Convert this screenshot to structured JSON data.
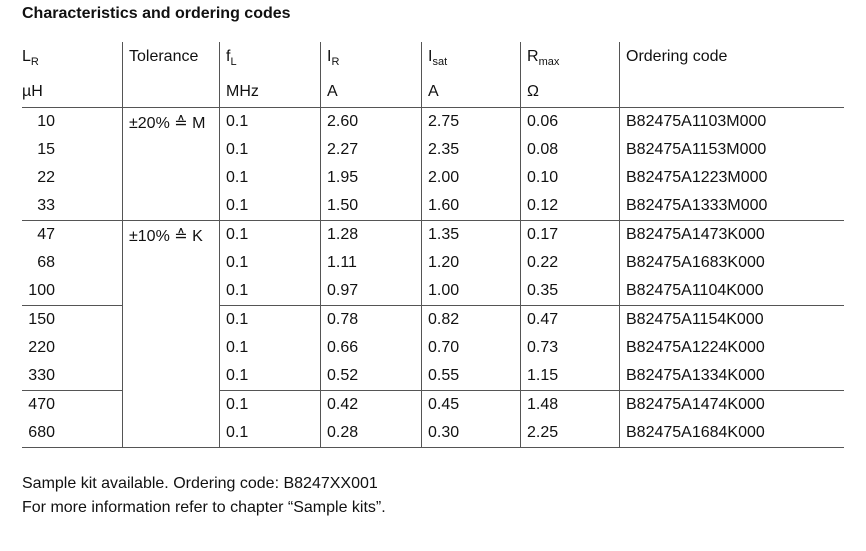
{
  "title": "Characteristics and ordering codes",
  "table": {
    "headers": [
      {
        "main": "L",
        "sub": "R",
        "unit": "µH"
      },
      {
        "main": "Tolerance"
      },
      {
        "main": "f",
        "sub": "L",
        "unit": "MHz"
      },
      {
        "main": "I",
        "sub": "R",
        "unit": "A"
      },
      {
        "main": "I",
        "sub": "sat",
        "unit": "A"
      },
      {
        "main": "R",
        "sub": "max",
        "unit": "Ω"
      },
      {
        "main": "Ordering code"
      }
    ],
    "tolerances": [
      "±20% ≙ M",
      "±10% ≙ K"
    ],
    "rows": [
      [
        "10",
        "0.1",
        "2.60",
        "2.75",
        "0.06",
        "B82475A1103M000"
      ],
      [
        "15",
        "0.1",
        "2.27",
        "2.35",
        "0.08",
        "B82475A1153M000"
      ],
      [
        "22",
        "0.1",
        "1.95",
        "2.00",
        "0.10",
        "B82475A1223M000"
      ],
      [
        "33",
        "0.1",
        "1.50",
        "1.60",
        "0.12",
        "B82475A1333M000"
      ],
      [
        "47",
        "0.1",
        "1.28",
        "1.35",
        "0.17",
        "B82475A1473K000"
      ],
      [
        "68",
        "0.1",
        "1.11",
        "1.20",
        "0.22",
        "B82475A1683K000"
      ],
      [
        "100",
        "0.1",
        "0.97",
        "1.00",
        "0.35",
        "B82475A1104K000"
      ],
      [
        "150",
        "0.1",
        "0.78",
        "0.82",
        "0.47",
        "B82475A1154K000"
      ],
      [
        "220",
        "0.1",
        "0.66",
        "0.70",
        "0.73",
        "B82475A1224K000"
      ],
      [
        "330",
        "0.1",
        "0.52",
        "0.55",
        "1.15",
        "B82475A1334K000"
      ],
      [
        "470",
        "0.1",
        "0.42",
        "0.45",
        "1.48",
        "B82475A1474K000"
      ],
      [
        "680",
        "0.1",
        "0.28",
        "0.30",
        "2.25",
        "B82475A1684K000"
      ]
    ]
  },
  "notes": [
    "Sample kit available. Ordering code: B8247XX001",
    "For more information refer to chapter “Sample kits”."
  ]
}
